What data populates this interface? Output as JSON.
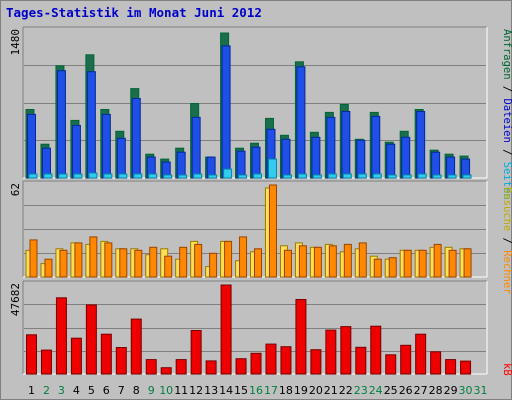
{
  "title": "Tages-Statistik im Monat Juni 2012",
  "colors": {
    "background": "#c0c0c0",
    "panel": "#c0c0c0",
    "grid": "#808080",
    "hits_fill": "#1a6e4e",
    "files_fill": "#1f4fe6",
    "pages_fill": "#33ccee",
    "visits_fill": "#ffdd55",
    "visits_outline": "#9a7a00",
    "sites_fill": "#ff8800",
    "kb_fill": "#ee0000",
    "weekday_label": "#000000",
    "weekend_label": "#008040",
    "title": "#0000cc",
    "label_hits": "#006633",
    "label_files": "#0000cc",
    "label_pages": "#00aadd",
    "label_visits": "#bbaa00",
    "label_sites": "#ff8800",
    "label_kb": "#ff0000"
  },
  "chart_data": [
    {
      "type": "bar",
      "panel": "top",
      "ymax_label": "1480",
      "ylim": [
        0,
        1480
      ],
      "right_labels": [
        "Anfragen",
        "Dateien",
        "Seiten"
      ],
      "separator": "/",
      "categories": [
        "1",
        "2",
        "3",
        "4",
        "5",
        "6",
        "7",
        "8",
        "9",
        "10",
        "11",
        "12",
        "13",
        "14",
        "15",
        "16",
        "17",
        "18",
        "19",
        "20",
        "21",
        "22",
        "23",
        "24",
        "25",
        "26",
        "27",
        "28",
        "29",
        "30",
        "31"
      ],
      "series": [
        {
          "name": "Anfragen",
          "values": [
            690,
            340,
            1130,
            580,
            1240,
            690,
            470,
            900,
            240,
            190,
            300,
            750,
            210,
            1460,
            300,
            350,
            600,
            430,
            1170,
            460,
            660,
            740,
            390,
            660,
            360,
            470,
            690,
            280,
            240,
            220,
            0
          ]
        },
        {
          "name": "Dateien",
          "values": [
            640,
            300,
            1080,
            530,
            1070,
            640,
            400,
            800,
            210,
            160,
            260,
            610,
            210,
            1330,
            270,
            310,
            490,
            390,
            1120,
            410,
            610,
            670,
            380,
            620,
            340,
            410,
            670,
            260,
            210,
            190,
            0
          ]
        },
        {
          "name": "Seiten",
          "values": [
            40,
            40,
            40,
            40,
            50,
            40,
            40,
            40,
            40,
            30,
            30,
            40,
            30,
            90,
            30,
            40,
            190,
            30,
            40,
            30,
            40,
            40,
            40,
            40,
            30,
            30,
            40,
            30,
            30,
            30,
            0
          ]
        }
      ]
    },
    {
      "type": "bar",
      "panel": "middle",
      "ymax_label": "62",
      "ylim": [
        0,
        62
      ],
      "right_labels": [
        "Besuche",
        "Rechner"
      ],
      "separator": "/",
      "categories": [
        "1",
        "2",
        "3",
        "4",
        "5",
        "6",
        "7",
        "8",
        "9",
        "10",
        "11",
        "12",
        "13",
        "14",
        "15",
        "16",
        "17",
        "18",
        "19",
        "20",
        "21",
        "22",
        "23",
        "24",
        "25",
        "26",
        "27",
        "28",
        "29",
        "30",
        "31"
      ],
      "series": [
        {
          "name": "Besuche",
          "values": [
            18,
            9,
            19,
            23,
            22,
            24,
            19,
            19,
            15,
            19,
            12,
            24,
            7,
            24,
            11,
            17,
            60,
            21,
            23,
            20,
            22,
            17,
            19,
            14,
            12,
            18,
            18,
            20,
            20,
            19,
            0
          ]
        },
        {
          "name": "Rechner",
          "values": [
            25,
            12,
            18,
            23,
            27,
            23,
            19,
            18,
            20,
            14,
            20,
            22,
            16,
            24,
            27,
            19,
            62,
            18,
            21,
            20,
            21,
            22,
            23,
            12,
            13,
            18,
            18,
            22,
            18,
            19,
            0
          ]
        }
      ]
    },
    {
      "type": "bar",
      "panel": "bottom",
      "ymax_label": "47682",
      "ylim": [
        0,
        47682
      ],
      "right_labels": [
        "kB"
      ],
      "categories": [
        "1",
        "2",
        "3",
        "4",
        "5",
        "6",
        "7",
        "8",
        "9",
        "10",
        "11",
        "12",
        "13",
        "14",
        "15",
        "16",
        "17",
        "18",
        "19",
        "20",
        "21",
        "22",
        "23",
        "24",
        "25",
        "26",
        "27",
        "28",
        "29",
        "30",
        "31"
      ],
      "weekend_days": [
        "2",
        "3",
        "9",
        "10",
        "16",
        "17",
        "23",
        "24",
        "30",
        "31"
      ],
      "series": [
        {
          "name": "kB",
          "values": [
            21000,
            12800,
            40800,
            19200,
            37000,
            21300,
            14200,
            29400,
            7700,
            3400,
            7700,
            23300,
            7000,
            47682,
            8200,
            11100,
            16000,
            14600,
            39900,
            13000,
            23500,
            25400,
            14300,
            25600,
            10300,
            15400,
            21300,
            11900,
            7700,
            6900,
            0
          ]
        }
      ]
    }
  ]
}
